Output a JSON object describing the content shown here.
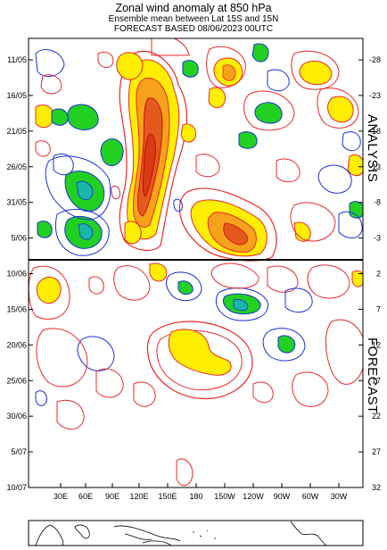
{
  "header": {
    "title": "Zonal wind anomaly at 850 hPa",
    "subtitle": "Ensemble mean between  Lat 15S and 15N",
    "forecast_line": "FORECAST  BASED 08/06/2023 00UTC"
  },
  "side_labels": {
    "analysis": "ANALYSIS",
    "forecast": "FORECAST"
  },
  "colors": {
    "strong_positive": "#e45a1e",
    "moderate_positive": "#f7a21b",
    "weak_positive": "#ffee00",
    "negative_fill": "#22d022",
    "negative_strong": "#18b7a8",
    "positive_contour": "#e8282a",
    "negative_contour": "#1a2fd6",
    "divider": "#000000"
  },
  "chart_data": {
    "type": "heatmap",
    "title": "Zonal wind anomaly at 850 hPa",
    "x_ticks": [
      "30E",
      "60E",
      "90E",
      "120E",
      "150E",
      "180",
      "150W",
      "120W",
      "90W",
      "60W",
      "30W"
    ],
    "y_ticks_left": [
      "11/05",
      "16/05",
      "21/05",
      "26/05",
      "31/05",
      "5/06",
      "10/06",
      "15/06",
      "20/06",
      "25/06",
      "30/06",
      "5/07",
      "10/07"
    ],
    "y_ticks_right": [
      "-28",
      "-23",
      "-18",
      "-13",
      "-8",
      "-3",
      "2",
      "7",
      "12",
      "17",
      "22",
      "27",
      "32"
    ],
    "analysis_forecast_boundary": "08/06/2023",
    "fill_levels": [
      {
        "category": "strong westerly anomaly",
        "color": "#e45a1e"
      },
      {
        "category": "moderate westerly anomaly",
        "color": "#f7a21b"
      },
      {
        "category": "weak westerly anomaly",
        "color": "#ffee00"
      },
      {
        "category": "easterly anomaly",
        "color": "#22d022"
      },
      {
        "category": "strong easterly anomaly",
        "color": "#18b7a8"
      }
    ],
    "features": [
      {
        "period": "analysis",
        "lon": "120E-150E",
        "dates": "11/05-31/05",
        "sign": "westerly",
        "intensity": "strong"
      },
      {
        "period": "analysis",
        "lon": "180-120W",
        "dates": "31/05-8/06",
        "sign": "westerly",
        "intensity": "strong"
      },
      {
        "period": "analysis",
        "lon": "40E-100E",
        "dates": "26/05-8/06",
        "sign": "easterly",
        "intensity": "strong"
      },
      {
        "period": "analysis",
        "lon": "40E-70E",
        "dates": "16/05-21/05",
        "sign": "easterly",
        "intensity": "moderate"
      },
      {
        "period": "forecast",
        "lon": "160E-150W",
        "dates": "17/06-24/06",
        "sign": "westerly",
        "intensity": "weak"
      },
      {
        "period": "forecast",
        "lon": "150W-100W",
        "dates": "13/06-16/06",
        "sign": "easterly",
        "intensity": "moderate"
      }
    ]
  }
}
